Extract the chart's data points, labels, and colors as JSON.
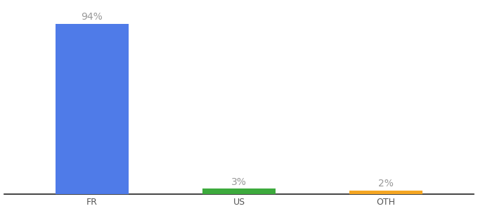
{
  "categories": [
    "FR",
    "US",
    "OTH"
  ],
  "values": [
    94,
    3,
    2
  ],
  "bar_colors": [
    "#4f7be8",
    "#3daa3d",
    "#f5a623"
  ],
  "label_color": "#999999",
  "background_color": "#ffffff",
  "ylim": [
    0,
    105
  ],
  "bar_width": 0.5,
  "label_fontsize": 10,
  "tick_fontsize": 9,
  "tick_color": "#555555",
  "spine_color": "#222222"
}
